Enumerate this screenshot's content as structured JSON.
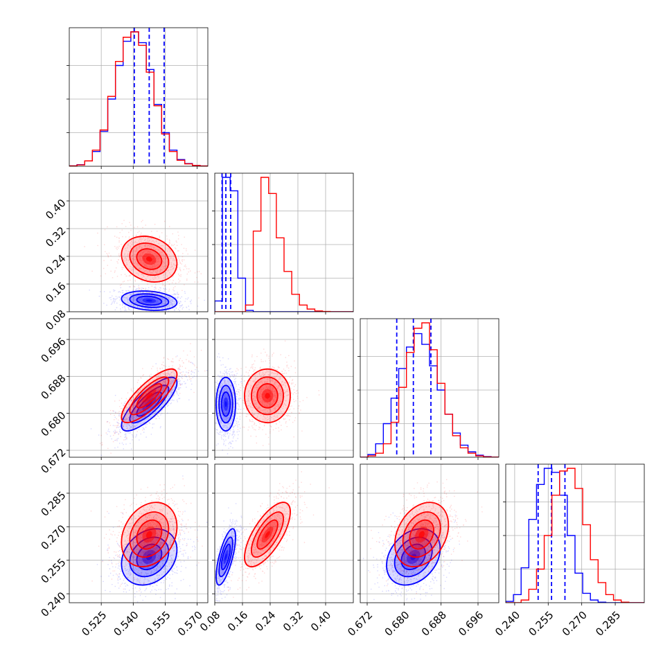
{
  "colors": {
    "blue": "#0000ff",
    "red": "#ff0000",
    "grid": "#b0b0b0"
  },
  "chart_data": {
    "type": "corner",
    "params": [
      {
        "range": [
          0.51,
          0.575
        ],
        "ticks": [
          "0.525",
          "0.540",
          "0.555",
          "0.570"
        ],
        "tick_values": [
          0.525,
          0.54,
          0.555,
          0.57
        ]
      },
      {
        "range": [
          0.08,
          0.48
        ],
        "ticks": [
          "0.08",
          "0.16",
          "0.24",
          "0.32",
          "0.40"
        ],
        "tick_values": [
          0.08,
          0.16,
          0.24,
          0.32,
          0.4
        ]
      },
      {
        "range": [
          0.6705,
          0.7005
        ],
        "ticks": [
          "0.672",
          "0.680",
          "0.688",
          "0.696"
        ],
        "tick_values": [
          0.672,
          0.68,
          0.688,
          0.696
        ]
      },
      {
        "range": [
          0.236,
          0.298
        ],
        "ticks": [
          "0.240",
          "0.255",
          "0.270",
          "0.285"
        ],
        "tick_values": [
          0.24,
          0.255,
          0.27,
          0.285
        ]
      }
    ],
    "series": [
      {
        "color": "#0000ff",
        "quantiles": [
          [
            0.5405,
            0.5475,
            0.5545
          ],
          [
            0.101,
            0.112,
            0.126
          ],
          [
            0.6784,
            0.682,
            0.6858
          ],
          [
            0.2505,
            0.2565,
            0.2625
          ]
        ],
        "means": [
          0.5475,
          0.112,
          0.682,
          0.2565
        ],
        "sigmas": [
          0.0065,
          0.014,
          0.0029,
          0.0063
        ],
        "hist": [
          [
            0.003,
            0.012,
            0.04,
            0.11,
            0.26,
            0.5,
            0.75,
            0.93,
            1.0,
            0.92,
            0.72,
            0.46,
            0.25,
            0.12,
            0.05,
            0.02,
            0.007,
            0.002
          ],
          [
            0.08,
            1.0,
            0.9,
            0.25,
            0.01,
            0.0,
            0.0,
            0.0,
            0.0,
            0.0,
            0.0,
            0.0,
            0.0,
            0.0,
            0.0,
            0.0,
            0.0,
            0.0
          ],
          [
            0.0,
            0.02,
            0.1,
            0.25,
            0.44,
            0.66,
            0.82,
            0.92,
            0.84,
            0.68,
            0.5,
            0.32,
            0.18,
            0.09,
            0.04,
            0.015,
            0.005,
            0.001
          ],
          [
            0.01,
            0.06,
            0.26,
            0.62,
            0.88,
            1.0,
            0.97,
            0.8,
            0.5,
            0.22,
            0.07,
            0.02,
            0.004,
            0.0,
            0.0,
            0.0,
            0.0,
            0.0
          ]
        ]
      },
      {
        "color": "#ff0000",
        "quantiles": null,
        "means": [
          0.5475,
          0.232,
          0.6838,
          0.2665
        ],
        "sigmas": [
          0.0065,
          0.033,
          0.0029,
          0.0072
        ],
        "hist": [
          [
            0.003,
            0.01,
            0.04,
            0.12,
            0.27,
            0.52,
            0.78,
            0.96,
            1.0,
            0.9,
            0.7,
            0.45,
            0.24,
            0.11,
            0.045,
            0.018,
            0.006,
            0.002
          ],
          [
            0.0,
            0.0,
            0.0,
            0.0,
            0.05,
            0.6,
            1.0,
            0.88,
            0.55,
            0.3,
            0.13,
            0.05,
            0.02,
            0.006,
            0.002,
            0.0,
            0.0,
            0.0
          ],
          [
            0.0,
            0.01,
            0.03,
            0.1,
            0.26,
            0.52,
            0.78,
            0.96,
            1.0,
            0.8,
            0.55,
            0.32,
            0.16,
            0.07,
            0.03,
            0.01,
            0.003,
            0.001
          ],
          [
            0.0,
            0.0,
            0.02,
            0.1,
            0.25,
            0.5,
            0.8,
            0.98,
            1.0,
            0.85,
            0.58,
            0.32,
            0.15,
            0.06,
            0.02,
            0.004,
            0.0,
            0.0
          ]
        ]
      }
    ],
    "correlations": {
      "0-1": -0.2,
      "0-2": 0.8,
      "0-3": 0.25,
      "1-2": 0.0,
      "1-3": 0.7,
      "2-3": 0.3
    },
    "grid": true,
    "xlabel": "",
    "ylabel": "",
    "title": ""
  }
}
